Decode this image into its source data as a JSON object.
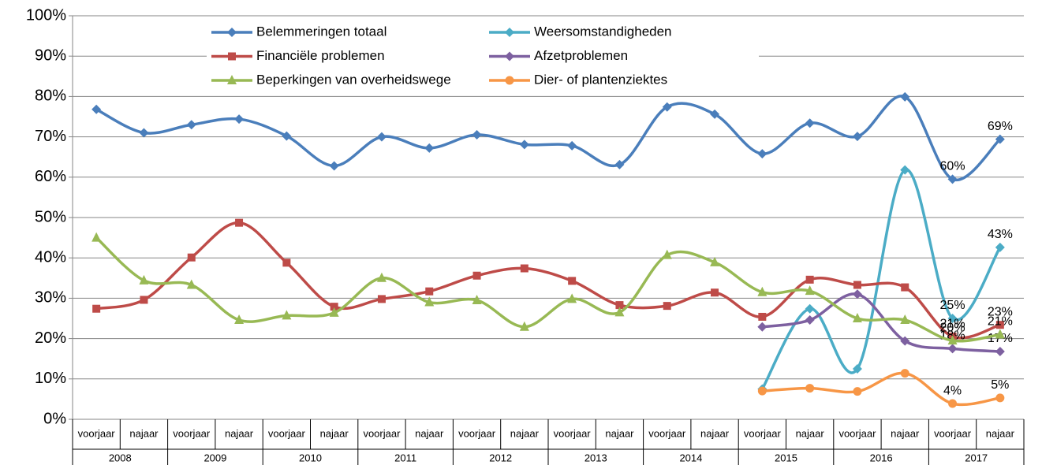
{
  "chart_data": {
    "type": "line",
    "categories": [
      "voorjaar",
      "najaar",
      "voorjaar",
      "najaar",
      "voorjaar",
      "najaar",
      "voorjaar",
      "najaar",
      "voorjaar",
      "najaar",
      "voorjaar",
      "najaar",
      "voorjaar",
      "najaar",
      "voorjaar",
      "najaar",
      "voorjaar",
      "najaar",
      "voorjaar",
      "najaar"
    ],
    "groups": [
      "2008",
      "2009",
      "2010",
      "2011",
      "2012",
      "2013",
      "2014",
      "2015",
      "2016",
      "2017"
    ],
    "ylim": [
      0,
      100
    ],
    "yticks": [
      {
        "value": 0,
        "label": "0%"
      },
      {
        "value": 10,
        "label": "10%"
      },
      {
        "value": 20,
        "label": "20%"
      },
      {
        "value": 30,
        "label": "30%"
      },
      {
        "value": 40,
        "label": "40%"
      },
      {
        "value": 50,
        "label": "50%"
      },
      {
        "value": 60,
        "label": "60%"
      },
      {
        "value": 70,
        "label": "70%"
      },
      {
        "value": 80,
        "label": "80%"
      },
      {
        "value": 90,
        "label": "90%"
      },
      {
        "value": 100,
        "label": "100%"
      }
    ],
    "grid": true,
    "smooth": true,
    "series": [
      {
        "name": "Belemmeringen totaal",
        "color": "#4a7ebb",
        "marker": "diamond",
        "values": [
          76.8,
          71,
          73,
          74.4,
          70.2,
          62.8,
          70,
          67.2,
          70.5,
          68.1,
          67.8,
          63.1,
          77.4,
          75.6,
          65.8,
          73.4,
          70.1,
          79.9,
          59.5,
          69.4
        ],
        "value_labels": [
          null,
          null,
          null,
          null,
          null,
          null,
          null,
          null,
          null,
          null,
          null,
          null,
          null,
          null,
          null,
          null,
          null,
          null,
          "60%",
          "69%"
        ]
      },
      {
        "name": "Weersomstandigheden",
        "color": "#4bacc6",
        "marker": "diamond",
        "values": [
          null,
          null,
          null,
          null,
          null,
          null,
          null,
          null,
          null,
          null,
          null,
          null,
          null,
          null,
          7.5,
          27.4,
          12.5,
          61.8,
          25,
          42.6
        ],
        "value_labels": [
          null,
          null,
          null,
          null,
          null,
          null,
          null,
          null,
          null,
          null,
          null,
          null,
          null,
          null,
          null,
          null,
          null,
          null,
          "25%",
          "43%"
        ]
      },
      {
        "name": "Financiële problemen",
        "color": "#be4b48",
        "marker": "square",
        "values": [
          27.4,
          29.6,
          40.1,
          48.7,
          38.8,
          27.9,
          29.8,
          31.7,
          35.6,
          37.4,
          34.3,
          28.3,
          28.1,
          31.4,
          25.4,
          34.6,
          33.3,
          32.7,
          20.5,
          23.4
        ],
        "value_labels": [
          null,
          null,
          null,
          null,
          null,
          null,
          null,
          null,
          null,
          null,
          null,
          null,
          null,
          null,
          null,
          null,
          null,
          null,
          "21%",
          "23%"
        ]
      },
      {
        "name": "Afzetproblemen",
        "color": "#7d60a0",
        "marker": "diamond",
        "values": [
          null,
          null,
          null,
          null,
          null,
          null,
          null,
          null,
          null,
          null,
          null,
          null,
          null,
          null,
          22.9,
          24.6,
          31,
          19.4,
          17.5,
          16.8
        ],
        "value_labels": [
          null,
          null,
          null,
          null,
          null,
          null,
          null,
          null,
          null,
          null,
          null,
          null,
          null,
          null,
          null,
          null,
          null,
          null,
          "18%",
          "17%"
        ]
      },
      {
        "name": "Beperkingen van overheidswege",
        "color": "#98b954",
        "marker": "triangle",
        "values": [
          45,
          34.4,
          33.3,
          24.6,
          25.7,
          26.4,
          35,
          29,
          29.5,
          22.9,
          29.8,
          26.5,
          40.7,
          38.9,
          31.5,
          31.8,
          25,
          24.6,
          19.5,
          21
        ],
        "value_labels": [
          null,
          null,
          null,
          null,
          null,
          null,
          null,
          null,
          null,
          null,
          null,
          null,
          null,
          null,
          null,
          null,
          null,
          null,
          "20%",
          "21%"
        ]
      },
      {
        "name": "Dier- of plantenziektes",
        "color": "#f79646",
        "marker": "circle",
        "values": [
          null,
          null,
          null,
          null,
          null,
          null,
          null,
          null,
          null,
          null,
          null,
          null,
          null,
          null,
          7,
          7.7,
          6.9,
          11.4,
          3.9,
          5.3
        ],
        "value_labels": [
          null,
          null,
          null,
          null,
          null,
          null,
          null,
          null,
          null,
          null,
          null,
          null,
          null,
          null,
          null,
          null,
          null,
          null,
          "4%",
          "5%"
        ]
      }
    ]
  }
}
